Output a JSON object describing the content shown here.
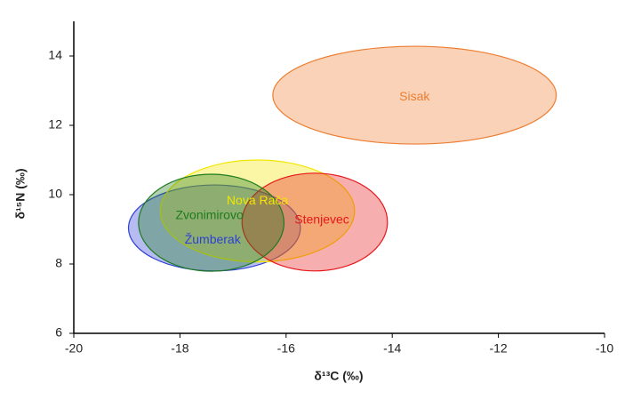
{
  "chart_data": {
    "type": "ellipse",
    "x_label": "δ¹³C (‰)",
    "y_label": "δ¹⁵N (‰)",
    "xlim": [
      -20,
      -10
    ],
    "xticks": [
      -20,
      -18,
      -16,
      -14,
      -12,
      -10
    ],
    "ylim": [
      6,
      15
    ],
    "yticks": [
      6,
      8,
      10,
      12,
      14
    ],
    "series": [
      {
        "name": "Sisak",
        "color": "#ed7d31",
        "x": -13.58,
        "y": 12.87,
        "x_radius": 2.67,
        "y_radius": 1.41
      },
      {
        "name": "Žumberak",
        "color": "#2e3fd6",
        "x": -17.35,
        "y": 9.04,
        "x_radius": 1.62,
        "y_radius": 1.24
      },
      {
        "name": "Nova Rača",
        "color": "#f2e600",
        "x": -16.54,
        "y": 9.53,
        "x_radius": 1.83,
        "y_radius": 1.47
      },
      {
        "name": "Stenjevec",
        "color": "#e8171b",
        "x": -15.46,
        "y": 9.21,
        "x_radius": 1.37,
        "y_radius": 1.41
      },
      {
        "name": "Zvonimirovo",
        "color": "#1e7b1e",
        "x": -17.41,
        "y": 9.19,
        "x_radius": 1.37,
        "y_radius": 1.4
      }
    ]
  }
}
